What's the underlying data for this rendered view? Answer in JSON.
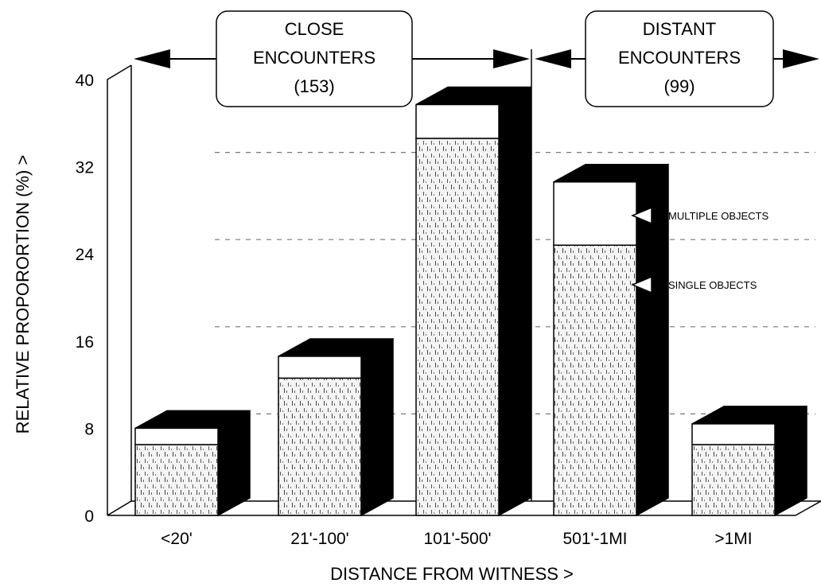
{
  "chart_data": {
    "type": "bar",
    "xlabel": "DISTANCE FROM WITNESS  >",
    "ylabel": "RELATIVE PROPORORTION  (%)  >",
    "ylim": [
      0,
      40
    ],
    "yticks": [
      "0",
      "8",
      "16",
      "24",
      "32",
      "40"
    ],
    "categories": [
      "<20'",
      "21'-100'",
      "101'-500'",
      "501'-1MI",
      ">1MI"
    ],
    "stacked": true,
    "series": [
      {
        "name": "SINGLE OBJECTS",
        "values": [
          6.5,
          12.6,
          34.6,
          24.8,
          6.5
        ]
      },
      {
        "name": "MULTIPLE OBJECTS",
        "values": [
          1.5,
          2.0,
          3.1,
          5.8,
          1.9
        ]
      }
    ],
    "groups": [
      {
        "lines": [
          "CLOSE",
          "ENCOUNTERS",
          "(153)"
        ],
        "from": 0,
        "to": 2
      },
      {
        "lines": [
          "DISTANT",
          "ENCOUNTERS",
          "(99)"
        ],
        "from": 3,
        "to": 4
      }
    ],
    "annotations": [
      "MULTIPLE OBJECTS",
      "SINGLE OBJECTS"
    ],
    "grid": "partial dashed horizontal",
    "legend": "arrow labels at right"
  },
  "colors": {
    "multiple": "#ffffff",
    "single": "#f1f1f1",
    "side": "#000000",
    "stroke": "#000000"
  }
}
